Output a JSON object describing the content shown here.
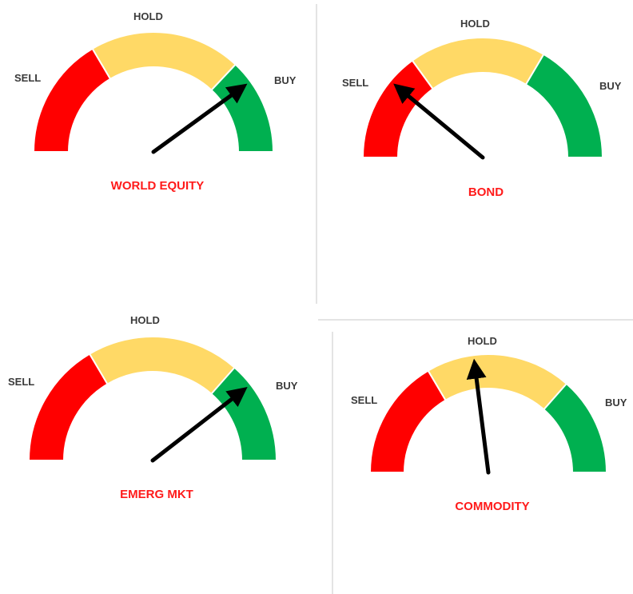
{
  "colors": {
    "sell": "#ff0000",
    "hold": "#ffd966",
    "buy": "#00b050",
    "needle": "#000000",
    "title": "#ff1a1a",
    "label": "#3a3a3a",
    "grid": "#c8c8c8",
    "divider": "#ffffff"
  },
  "chart_data": [
    {
      "type": "gauge",
      "title": "WORLD EQUITY",
      "labels": {
        "sell": "SELL",
        "hold": "HOLD",
        "buy": "BUY"
      },
      "zones": [
        {
          "name": "SELL",
          "from": 0,
          "to": 0.33
        },
        {
          "name": "HOLD",
          "from": 0.33,
          "to": 0.74
        },
        {
          "name": "BUY",
          "from": 0.74,
          "to": 1
        }
      ],
      "needle_value": 0.8
    },
    {
      "type": "gauge",
      "title": "BOND",
      "labels": {
        "sell": "SELL",
        "hold": "HOLD",
        "buy": "BUY"
      },
      "zones": [
        {
          "name": "SELL",
          "from": 0,
          "to": 0.3
        },
        {
          "name": "HOLD",
          "from": 0.3,
          "to": 0.67
        },
        {
          "name": "BUY",
          "from": 0.67,
          "to": 1
        }
      ],
      "needle_value": 0.22
    },
    {
      "type": "gauge",
      "title": "EMERG MKT",
      "labels": {
        "sell": "SELL",
        "hold": "HOLD",
        "buy": "BUY"
      },
      "zones": [
        {
          "name": "SELL",
          "from": 0,
          "to": 0.33
        },
        {
          "name": "HOLD",
          "from": 0.33,
          "to": 0.73
        },
        {
          "name": "BUY",
          "from": 0.73,
          "to": 1
        }
      ],
      "needle_value": 0.79
    },
    {
      "type": "gauge",
      "title": "COMMODITY",
      "labels": {
        "sell": "SELL",
        "hold": "HOLD",
        "buy": "BUY"
      },
      "zones": [
        {
          "name": "SELL",
          "from": 0,
          "to": 0.33
        },
        {
          "name": "HOLD",
          "from": 0.33,
          "to": 0.73
        },
        {
          "name": "BUY",
          "from": 0.73,
          "to": 1
        }
      ],
      "needle_value": 0.46
    }
  ]
}
